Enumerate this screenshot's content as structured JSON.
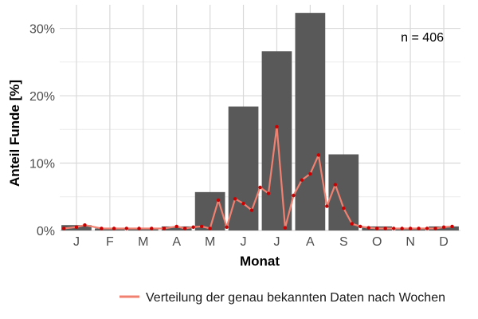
{
  "chart_data": {
    "type": "bar",
    "categories": [
      "J",
      "F",
      "M",
      "A",
      "M",
      "J",
      "J",
      "A",
      "S",
      "O",
      "N",
      "D"
    ],
    "values": [
      0.8,
      0.3,
      0.3,
      0.6,
      5.7,
      18.4,
      26.6,
      32.3,
      11.3,
      0.6,
      0.3,
      0.6
    ],
    "xlabel": "Monat",
    "ylabel": "Anteil Funde [%]",
    "ylim": [
      0,
      33.5
    ],
    "y_ticks": [
      0,
      10,
      20,
      30
    ],
    "y_tick_labels": [
      "0%",
      "10%",
      "20%",
      "30%"
    ],
    "grid": true,
    "annotation": "n = 406",
    "legend_position": "bottom-right",
    "colors": {
      "bar": "#595959",
      "line": "#f08070",
      "point": "#cc0000",
      "grid": "#d9d9d9"
    },
    "series": [
      {
        "name": "Verteilung der genau bekannten Daten nach Wochen",
        "x": [
          1,
          4,
          6,
          10,
          13,
          16,
          19,
          22,
          25,
          28,
          30,
          32,
          34,
          36,
          38,
          40,
          42,
          44,
          46,
          48,
          50,
          52,
          54,
          56,
          58,
          60,
          62,
          64,
          66,
          68,
          70,
          72,
          74,
          76,
          78,
          80,
          82,
          84,
          86,
          88,
          90,
          92,
          94
        ],
        "values": [
          0.3,
          0.5,
          0.8,
          0.3,
          0.3,
          0.3,
          0.3,
          0.3,
          0.3,
          0.6,
          0.3,
          0.5,
          0.6,
          0.3,
          4.5,
          0.5,
          4.7,
          4.0,
          3.0,
          6.4,
          5.5,
          15.4,
          0.4,
          5.2,
          7.5,
          8.4,
          11.2,
          3.6,
          6.8,
          3.3,
          1.0,
          0.6,
          0.4,
          0.3,
          0.3,
          0.3,
          0.3,
          0.3,
          0.3,
          0.3,
          0.3,
          0.5,
          0.6
        ]
      }
    ]
  }
}
